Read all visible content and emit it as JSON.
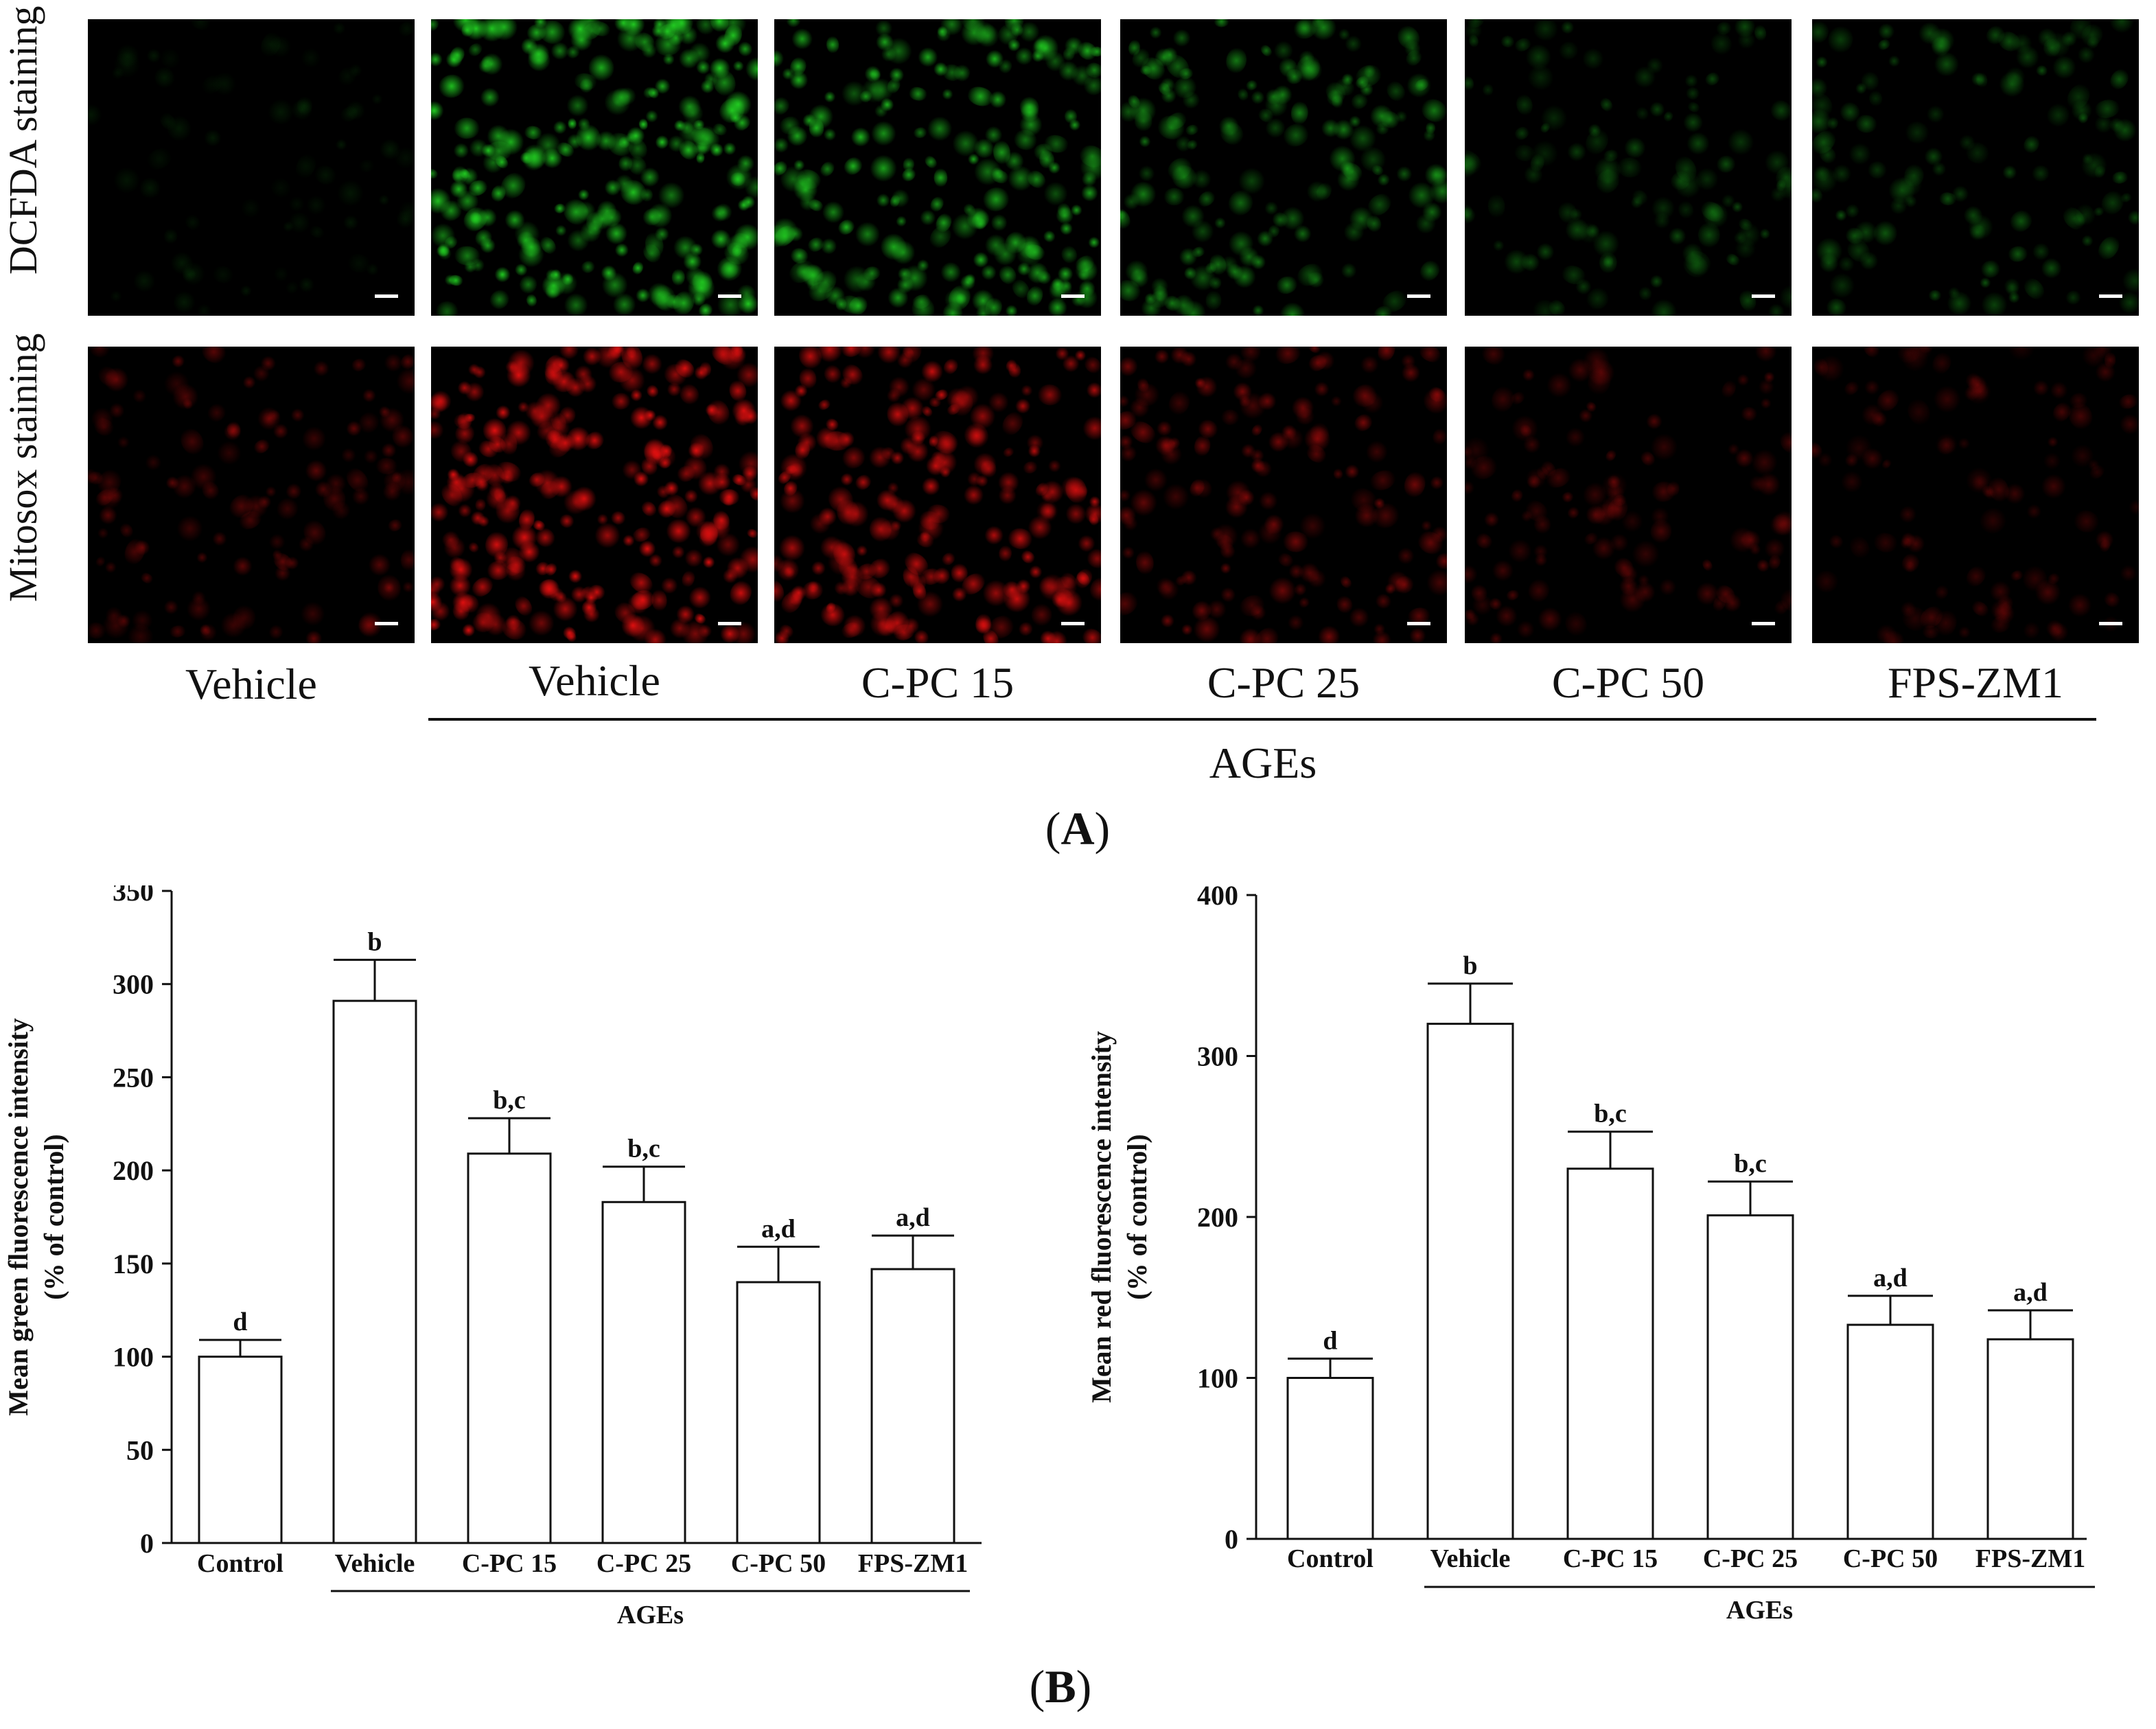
{
  "panel_a": {
    "label": "A",
    "row_labels": [
      "DCFDA staining",
      "Mitosox staining"
    ],
    "column_labels": [
      "Vehicle",
      "Vehicle",
      "C-PC 15",
      "C-PC 25",
      "C-PC 50",
      "FPS-ZM1"
    ],
    "group_label": "AGEs",
    "colors": {
      "green_channel": "#22cc22",
      "red_channel": "#e01010"
    },
    "green_brightness": [
      0.12,
      1.0,
      0.85,
      0.6,
      0.35,
      0.4
    ],
    "red_brightness": [
      0.4,
      1.0,
      0.85,
      0.5,
      0.35,
      0.3
    ]
  },
  "panel_b": {
    "label": "B"
  },
  "chart_data": [
    {
      "type": "bar",
      "categories": [
        "Control",
        "Vehicle",
        "C-PC 15",
        "C-PC 25",
        "C-PC 50",
        "FPS-ZM1"
      ],
      "values": [
        100,
        291,
        209,
        183,
        140,
        147
      ],
      "errors": [
        9,
        22,
        19,
        19,
        19,
        18
      ],
      "significance": [
        "d",
        "b",
        "b,c",
        "b,c",
        "a,d",
        "a,d"
      ],
      "ylabel_line1": "Mean green fluorescence intensity",
      "ylabel_line2": "(% of control)",
      "group_label": "AGEs",
      "ylim": [
        0,
        350
      ],
      "yticks": [
        0,
        50,
        100,
        150,
        200,
        250,
        300,
        350
      ]
    },
    {
      "type": "bar",
      "categories": [
        "Control",
        "Vehicle",
        "C-PC 15",
        "C-PC 25",
        "C-PC 50",
        "FPS-ZM1"
      ],
      "values": [
        100,
        320,
        230,
        201,
        133,
        124
      ],
      "errors": [
        12,
        25,
        23,
        21,
        18,
        18
      ],
      "significance": [
        "d",
        "b",
        "b,c",
        "b,c",
        "a,d",
        "a,d"
      ],
      "ylabel_line1": "Mean red fluorescence intensity",
      "ylabel_line2": "(% of control)",
      "group_label": "AGEs",
      "ylim": [
        0,
        400
      ],
      "yticks": [
        0,
        100,
        200,
        300,
        400
      ]
    }
  ]
}
